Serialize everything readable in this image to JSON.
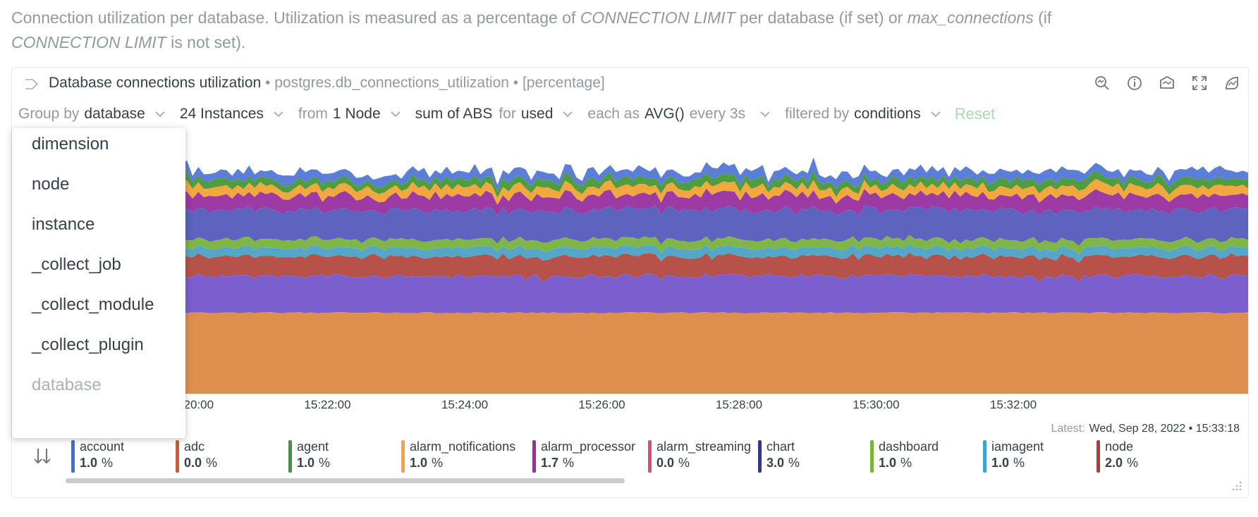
{
  "intro": {
    "t1": "Connection utilization per database. Utilization is measured as a percentage of ",
    "em1": "CONNECTION LIMIT",
    "t2": " per database (if set) or ",
    "em2": "max_connections",
    "t3": " (if ",
    "em3": "CONNECTION LIMIT",
    "t4": " is not set)."
  },
  "card": {
    "title": "Database connections utilization",
    "context": " • postgres.db_connections_utilization • [percentage]",
    "tools": [
      "zoom-icon",
      "info-icon",
      "dashboard-add-icon",
      "fullscreen-icon",
      "anomaly-icon"
    ]
  },
  "groupbar": {
    "group_by_label": "Group by",
    "group_by_value": "database",
    "instances": "24 Instances",
    "from_label": "from",
    "from_value": "1 Node",
    "agg_value": "sum of ABS",
    "for_label": "for",
    "for_value": "used",
    "each_label": "each as",
    "each_value": "AVG()",
    "every_value": "every 3s",
    "filtered_label": "filtered by",
    "filtered_value": "conditions",
    "reset": "Reset"
  },
  "dropdown": {
    "items": [
      "dimension",
      "node",
      "instance",
      "_collect_job",
      "_collect_module",
      "_collect_plugin",
      "database"
    ]
  },
  "latest": {
    "label": "Latest:",
    "value": "Wed, Sep 28, 2022 • 15:33:18"
  },
  "legend": [
    {
      "name": "account",
      "value": "1.0",
      "unit": "%",
      "color": "#3f6fd4"
    },
    {
      "name": "adc",
      "value": "0.0",
      "unit": "%",
      "color": "#d9552a"
    },
    {
      "name": "agent",
      "value": "1.0",
      "unit": "%",
      "color": "#3b9a37"
    },
    {
      "name": "alarm_notifications",
      "value": "1.0",
      "unit": "%",
      "color": "#f5a33b"
    },
    {
      "name": "alarm_processor",
      "value": "1.7",
      "unit": "%",
      "color": "#a126a8"
    },
    {
      "name": "alarm_streaming",
      "value": "0.0",
      "unit": "%",
      "color": "#d94a74"
    },
    {
      "name": "chart",
      "value": "3.0",
      "unit": "%",
      "color": "#2f35a3"
    },
    {
      "name": "dashboard",
      "value": "1.0",
      "unit": "%",
      "color": "#77b533"
    },
    {
      "name": "iamagent",
      "value": "1.0",
      "unit": "%",
      "color": "#3fa3cf"
    },
    {
      "name": "node",
      "value": "2.0",
      "unit": "%",
      "color": "#b33a3a"
    }
  ],
  "chart_data": {
    "type": "area",
    "stacked": true,
    "x_ticks": [
      "15:20:00",
      "15:22:00",
      "15:24:00",
      "15:26:00",
      "15:28:00",
      "15:30:00",
      "15:32:00"
    ],
    "layers_bottom_to_top": [
      {
        "name": "base",
        "color": "#df8f4d"
      },
      {
        "name": "layer2",
        "color": "#7c5fce"
      },
      {
        "name": "node",
        "color": "#b6524a"
      },
      {
        "name": "iamagent",
        "color": "#55a7c9"
      },
      {
        "name": "dashboard",
        "color": "#80b547"
      },
      {
        "name": "chart",
        "color": "#5d63bf"
      },
      {
        "name": "alarm_processor",
        "color": "#9d3aa4"
      },
      {
        "name": "alarm_notifications",
        "color": "#f2a73f"
      },
      {
        "name": "agent",
        "color": "#4f9d3f"
      },
      {
        "name": "account",
        "color": "#5b7fd9"
      }
    ]
  }
}
